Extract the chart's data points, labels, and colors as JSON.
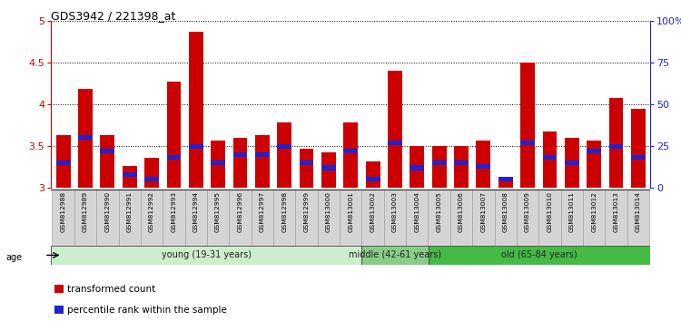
{
  "title": "GDS3942 / 221398_at",
  "samples": [
    "GSM812988",
    "GSM812989",
    "GSM812990",
    "GSM812991",
    "GSM812992",
    "GSM812993",
    "GSM812994",
    "GSM812995",
    "GSM812996",
    "GSM812997",
    "GSM812998",
    "GSM812999",
    "GSM813000",
    "GSM813001",
    "GSM813002",
    "GSM813003",
    "GSM813004",
    "GSM813005",
    "GSM813006",
    "GSM813007",
    "GSM813008",
    "GSM813009",
    "GSM813010",
    "GSM813011",
    "GSM813012",
    "GSM813013",
    "GSM813014"
  ],
  "transformed_count": [
    3.63,
    4.18,
    3.63,
    3.26,
    3.36,
    4.27,
    4.87,
    3.57,
    3.6,
    3.63,
    3.78,
    3.47,
    3.42,
    3.78,
    3.32,
    4.4,
    3.5,
    3.5,
    3.5,
    3.57,
    3.13,
    4.5,
    3.67,
    3.6,
    3.57,
    4.08,
    3.95
  ],
  "percentile_rank": [
    15,
    30,
    22,
    8,
    5,
    18,
    25,
    15,
    20,
    20,
    25,
    15,
    12,
    22,
    5,
    27,
    12,
    15,
    15,
    13,
    5,
    27,
    18,
    15,
    22,
    25,
    18
  ],
  "ymin": 3.0,
  "ymax": 5.0,
  "yticks_left": [
    3.0,
    3.5,
    4.0,
    4.5,
    5.0
  ],
  "ytick_labels_left": [
    "3",
    "3.5",
    "4",
    "4.5",
    "5"
  ],
  "right_yticks": [
    0,
    25,
    50,
    75,
    100
  ],
  "right_yticklabels": [
    "0",
    "25",
    "50",
    "75",
    "100%"
  ],
  "bar_color": "#cc0000",
  "percentile_color": "#2222cc",
  "xtick_bg": "#d4d4d4",
  "age_groups": [
    {
      "label": "young (19-31 years)",
      "start": 0,
      "end": 14,
      "color": "#cceecc"
    },
    {
      "label": "middle (42-61 years)",
      "start": 14,
      "end": 17,
      "color": "#88cc88"
    },
    {
      "label": "old (65-84 years)",
      "start": 17,
      "end": 27,
      "color": "#44bb44"
    }
  ],
  "legend_entries": [
    {
      "label": "transformed count",
      "color": "#cc0000"
    },
    {
      "label": "percentile rank within the sample",
      "color": "#2222cc"
    }
  ]
}
